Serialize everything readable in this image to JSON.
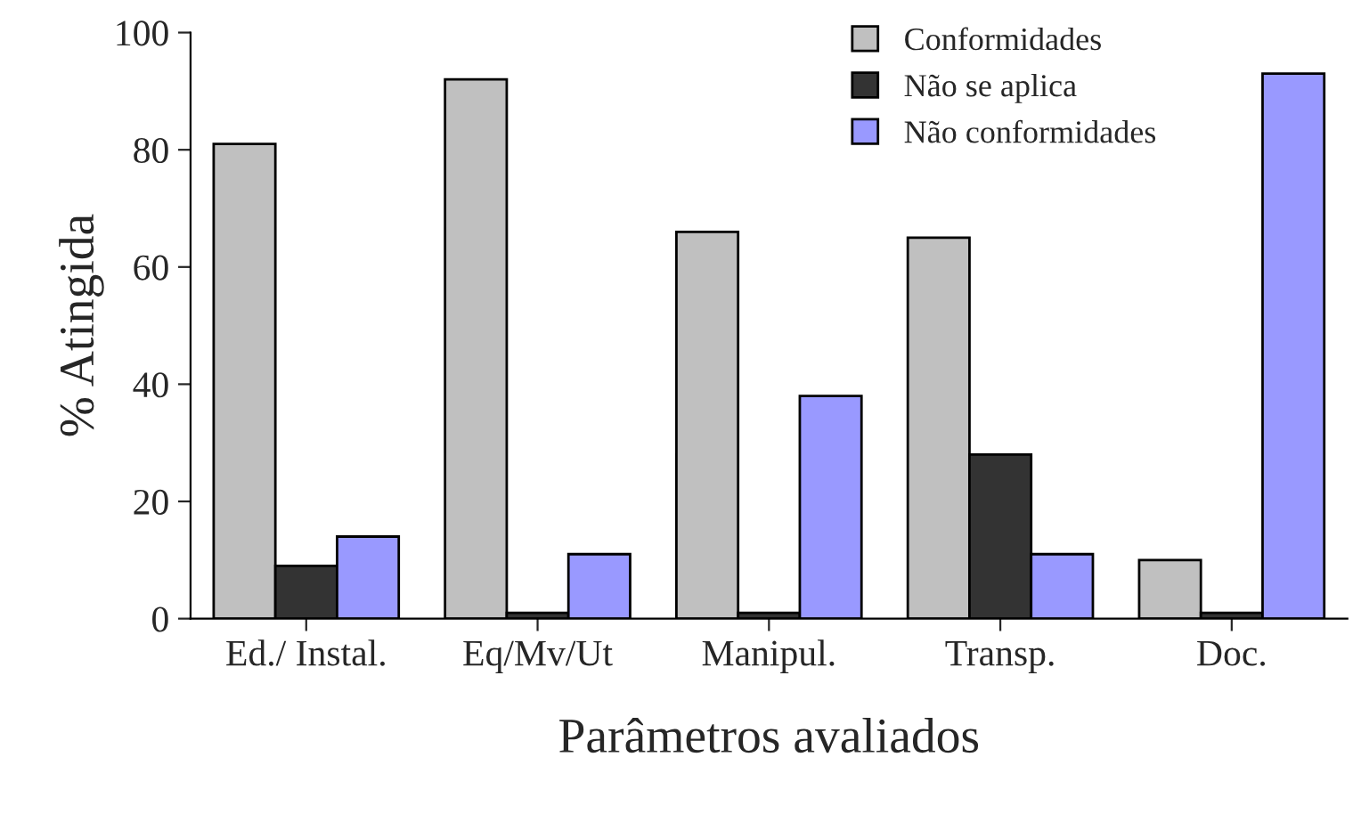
{
  "chart_data": {
    "type": "bar",
    "xlabel": "Parâmetros avaliados",
    "ylabel": "% Atingida",
    "categories": [
      "Ed./ Instal.",
      "Eq/Mv/Ut",
      "Manipul.",
      "Transp.",
      "Doc."
    ],
    "series": [
      {
        "name": "Conformidades",
        "color": "#c0c0c0",
        "values": [
          81,
          92,
          66,
          65,
          10
        ]
      },
      {
        "name": "Não se aplica",
        "color": "#333333",
        "values": [
          9,
          1,
          1,
          28,
          1
        ]
      },
      {
        "name": "Não conformidades",
        "color": "#9999ff",
        "values": [
          14,
          11,
          38,
          11,
          93
        ]
      }
    ],
    "ylim": [
      0,
      100
    ],
    "yticks": [
      0,
      20,
      40,
      60,
      80,
      100
    ],
    "grid": false,
    "legend": "top right"
  }
}
